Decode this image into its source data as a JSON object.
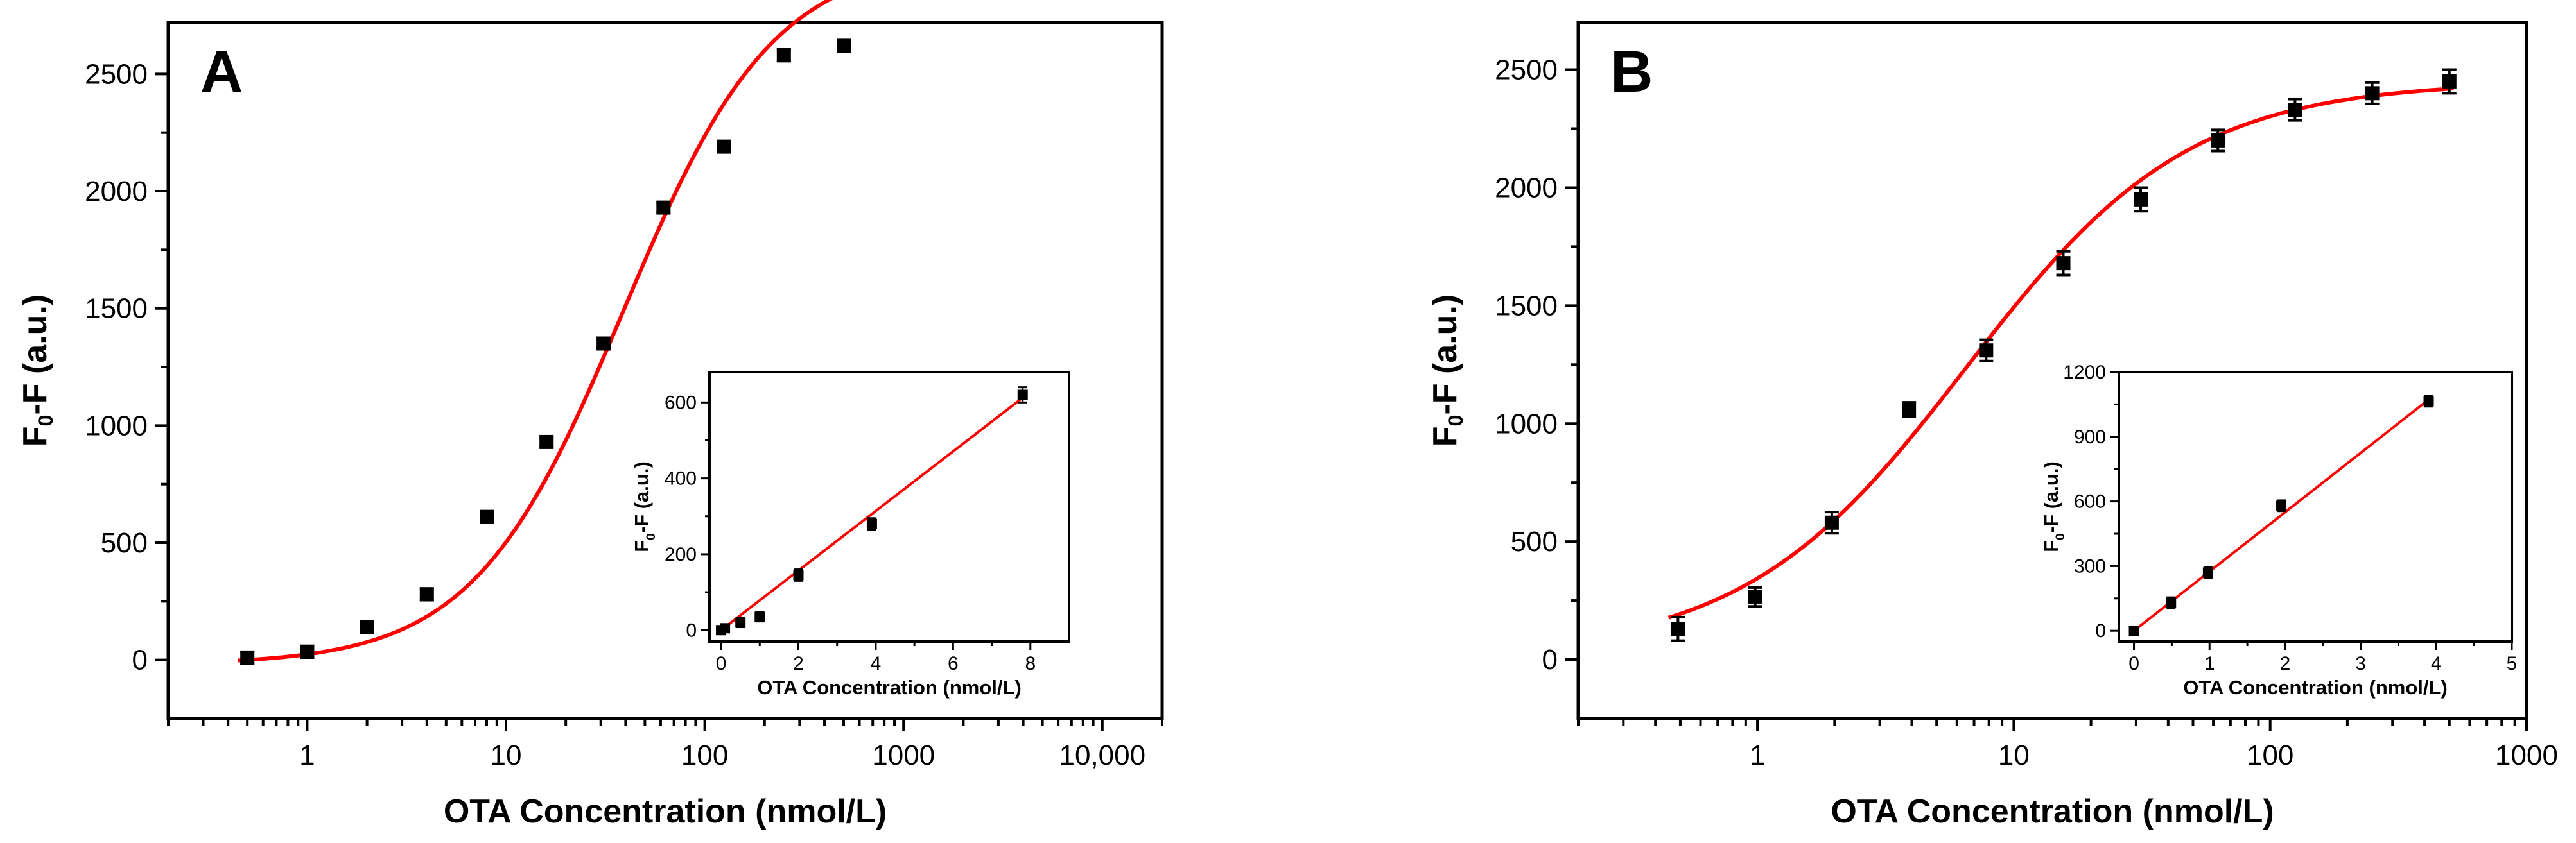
{
  "colors": {
    "fit": "#ff0000",
    "points": "#000000",
    "axes": "#000000",
    "background": "#ffffff"
  },
  "chart_data": [
    {
      "type": "scatter",
      "panel_label": "A",
      "xlabel": "OTA Concentration (nmol/L)",
      "ylabel_main": "F",
      "ylabel_sub": "0",
      "ylabel_tail": "-F (a.u.)",
      "x_scale": "log",
      "xlim": [
        0.2,
        20000
      ],
      "ylim": [
        -250,
        2720
      ],
      "xticks": [
        {
          "value": 1,
          "label": "1"
        },
        {
          "value": 10,
          "label": "10"
        },
        {
          "value": 100,
          "label": "100"
        },
        {
          "value": 1000,
          "label": "1000"
        },
        {
          "value": 10000,
          "label": "10,000"
        }
      ],
      "yticks": [
        {
          "value": 0,
          "label": "0"
        },
        {
          "value": 500,
          "label": "500"
        },
        {
          "value": 1000,
          "label": "1000"
        },
        {
          "value": 1500,
          "label": "1500"
        },
        {
          "value": 2000,
          "label": "2000"
        },
        {
          "value": 2500,
          "label": "2500"
        }
      ],
      "series": [
        {
          "name": "data",
          "x": [
            0.5,
            1,
            2,
            4,
            8,
            16,
            31,
            62,
            125,
            250,
            500
          ],
          "y": [
            10,
            35,
            140,
            280,
            610,
            930,
            1350,
            1930,
            2190,
            2580,
            2620
          ],
          "error": [
            25,
            25,
            25,
            25,
            25,
            20,
            20,
            20,
            20,
            25,
            25
          ]
        }
      ],
      "fit": {
        "model": "sigmoidal",
        "bottom": -20,
        "top": 3000,
        "x0": 39,
        "hill": 1.15,
        "x_range": [
          0.45,
          520
        ]
      },
      "inset": {
        "type": "scatter",
        "xlabel": "OTA Concentration (nmol/L)",
        "ylabel_main": "F",
        "ylabel_sub": "0",
        "ylabel_tail": "-F (a.u.)",
        "xlim": [
          -0.3,
          9
        ],
        "ylim": [
          -30,
          680
        ],
        "xticks": [
          {
            "value": 0,
            "label": "0"
          },
          {
            "value": 2,
            "label": "2"
          },
          {
            "value": 4,
            "label": "4"
          },
          {
            "value": 6,
            "label": "6"
          },
          {
            "value": 8,
            "label": "8"
          }
        ],
        "yticks": [
          {
            "value": 0,
            "label": "0"
          },
          {
            "value": 200,
            "label": "200"
          },
          {
            "value": 400,
            "label": "400"
          },
          {
            "value": 600,
            "label": "600"
          }
        ],
        "x": [
          0,
          0.1,
          0.5,
          1,
          2,
          3.9,
          7.8
        ],
        "y": [
          0,
          5,
          20,
          35,
          145,
          280,
          620
        ],
        "error": [
          10,
          10,
          12,
          12,
          15,
          15,
          20
        ],
        "fit": {
          "slope": 78.5,
          "intercept": 0,
          "x_range": [
            0,
            7.8
          ]
        }
      }
    },
    {
      "type": "scatter",
      "panel_label": "B",
      "xlabel": "OTA Concentration (nmol/L)",
      "ylabel_main": "F",
      "ylabel_sub": "0",
      "ylabel_tail": "-F (a.u.)",
      "x_scale": "log",
      "xlim": [
        0.2,
        1000
      ],
      "ylim": [
        -250,
        2700
      ],
      "xticks": [
        {
          "value": 1,
          "label": "1"
        },
        {
          "value": 10,
          "label": "10"
        },
        {
          "value": 100,
          "label": "100"
        },
        {
          "value": 1000,
          "label": "1000"
        }
      ],
      "yticks": [
        {
          "value": 0,
          "label": "0"
        },
        {
          "value": 500,
          "label": "500"
        },
        {
          "value": 1000,
          "label": "1000"
        },
        {
          "value": 1500,
          "label": "1500"
        },
        {
          "value": 2000,
          "label": "2000"
        },
        {
          "value": 2500,
          "label": "2500"
        }
      ],
      "series": [
        {
          "name": "data",
          "x": [
            0.49,
            0.98,
            1.95,
            3.9,
            7.8,
            15.6,
            31.25,
            62.5,
            125,
            250,
            500
          ],
          "y": [
            130,
            265,
            580,
            1060,
            1310,
            1680,
            1950,
            2200,
            2330,
            2400,
            2450
          ],
          "error": [
            50,
            40,
            45,
            30,
            45,
            50,
            50,
            45,
            45,
            45,
            50
          ]
        }
      ],
      "fit": {
        "model": "sigmoidal",
        "bottom": 20,
        "top": 2450,
        "x0": 6.5,
        "hill": 1.0,
        "x_range": [
          0.45,
          520
        ]
      },
      "inset": {
        "type": "scatter",
        "xlabel": "OTA Concentration (nmol/L)",
        "ylabel_main": "F",
        "ylabel_sub": "0",
        "ylabel_tail": "-F (a.u.)",
        "xlim": [
          -0.2,
          5
        ],
        "ylim": [
          -50,
          1200
        ],
        "xticks": [
          {
            "value": 0,
            "label": "0"
          },
          {
            "value": 1,
            "label": "1"
          },
          {
            "value": 2,
            "label": "2"
          },
          {
            "value": 3,
            "label": "3"
          },
          {
            "value": 4,
            "label": "4"
          },
          {
            "value": 5,
            "label": "5"
          }
        ],
        "yticks": [
          {
            "value": 0,
            "label": "0"
          },
          {
            "value": 300,
            "label": "300"
          },
          {
            "value": 600,
            "label": "600"
          },
          {
            "value": 900,
            "label": "900"
          },
          {
            "value": 1200,
            "label": "1200"
          }
        ],
        "x": [
          0,
          0.49,
          0.98,
          1.95,
          3.9
        ],
        "y": [
          0,
          130,
          270,
          580,
          1065
        ],
        "error": [
          20,
          25,
          25,
          25,
          25
        ],
        "fit": {
          "slope": 275,
          "intercept": 0,
          "x_range": [
            0,
            3.9
          ]
        }
      }
    }
  ]
}
